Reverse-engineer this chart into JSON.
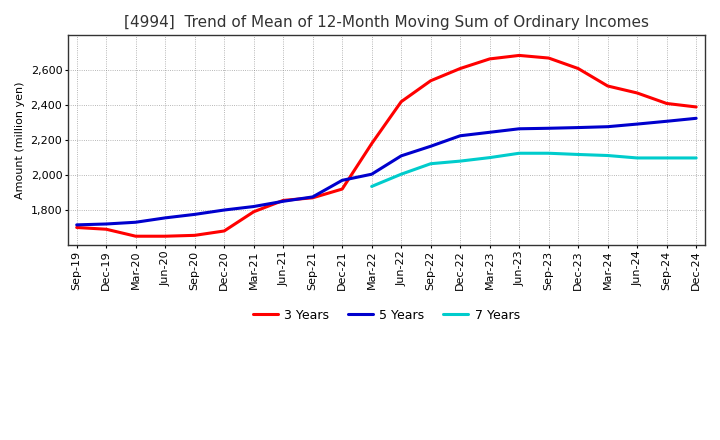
{
  "title": "[4994]  Trend of Mean of 12-Month Moving Sum of Ordinary Incomes",
  "ylabel": "Amount (million yen)",
  "x_labels": [
    "Sep-19",
    "Dec-19",
    "Mar-20",
    "Jun-20",
    "Sep-20",
    "Dec-20",
    "Mar-21",
    "Jun-21",
    "Sep-21",
    "Dec-21",
    "Mar-22",
    "Jun-22",
    "Sep-22",
    "Dec-22",
    "Mar-23",
    "Jun-23",
    "Sep-23",
    "Dec-23",
    "Mar-24",
    "Jun-24",
    "Sep-24",
    "Dec-24"
  ],
  "series": {
    "3 Years": {
      "color": "#FF0000",
      "data": [
        1700,
        1690,
        1650,
        1650,
        1655,
        1680,
        1790,
        1855,
        1870,
        1920,
        2180,
        2420,
        2540,
        2610,
        2665,
        2685,
        2670,
        2610,
        2510,
        2470,
        2410,
        2390
      ]
    },
    "5 Years": {
      "color": "#0000CD",
      "data": [
        1715,
        1720,
        1730,
        1755,
        1775,
        1800,
        1820,
        1850,
        1875,
        1970,
        2005,
        2110,
        2165,
        2225,
        2245,
        2265,
        2268,
        2272,
        2277,
        2292,
        2308,
        2325
      ]
    },
    "7 Years": {
      "color": "#00CCCC",
      "data": [
        null,
        null,
        null,
        null,
        null,
        null,
        null,
        null,
        null,
        null,
        1935,
        2005,
        2065,
        2080,
        2100,
        2125,
        2125,
        2118,
        2112,
        2098,
        2098,
        2098
      ]
    },
    "10 Years": {
      "color": "#008000",
      "data": [
        null,
        null,
        null,
        null,
        null,
        null,
        null,
        null,
        null,
        null,
        null,
        null,
        null,
        null,
        null,
        null,
        null,
        null,
        null,
        null,
        null,
        null
      ]
    }
  },
  "ylim": [
    1600,
    2800
  ],
  "ytick_min": 1800,
  "ytick_max": 2600,
  "ytick_step": 200,
  "background_color": "#FFFFFF",
  "plot_background": "#FFFFFF",
  "grid_color": "#888888",
  "title_fontsize": 11,
  "axis_label_fontsize": 8,
  "tick_fontsize": 8,
  "legend_fontsize": 9,
  "linewidth": 2.2
}
